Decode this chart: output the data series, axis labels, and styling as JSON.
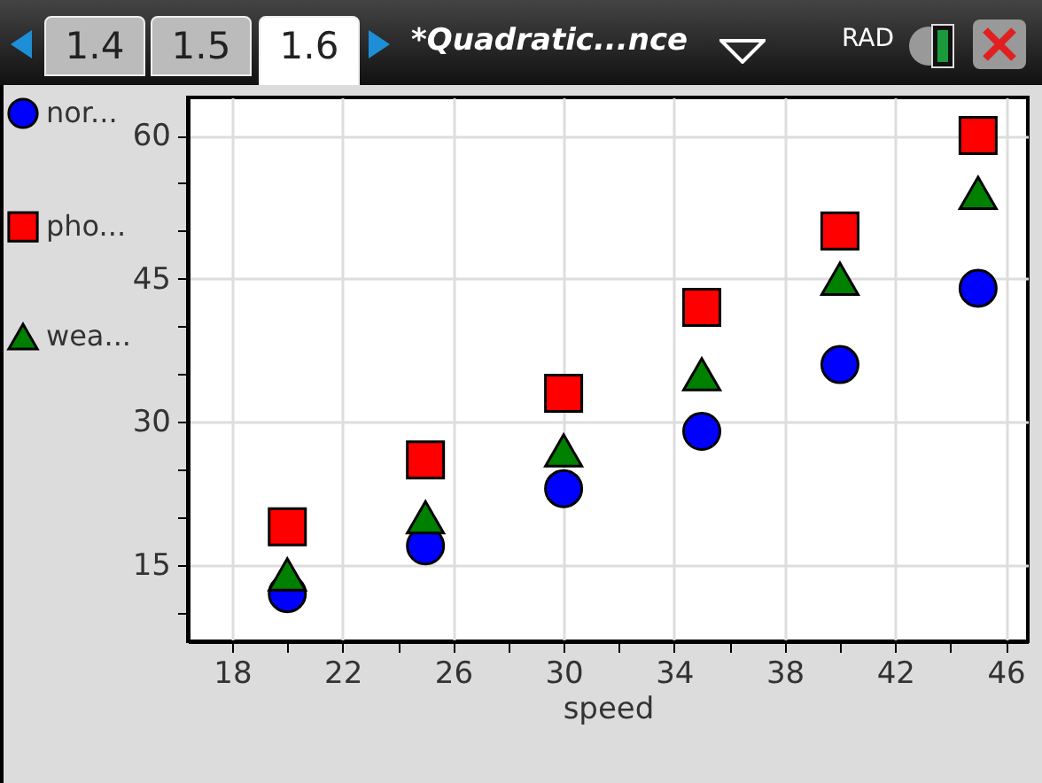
{
  "chart_data": {
    "type": "scatter",
    "xlabel": "speed",
    "annotations": [
      "1.4",
      "1.5",
      "1.6",
      "*Quadratic...nce",
      "RAD"
    ],
    "xlim": [
      16.4,
      46.8
    ],
    "ylim": [
      7,
      64
    ],
    "xticks": [
      18,
      {
        "value": 20,
        "label": null
      },
      22,
      {
        "value": 24,
        "label": null
      },
      26,
      {
        "value": 28,
        "label": null
      },
      30,
      {
        "value": 32,
        "label": null
      },
      34,
      {
        "value": 36,
        "label": null
      },
      38,
      {
        "value": 40,
        "label": null
      },
      42,
      {
        "value": 44,
        "label": null
      },
      46
    ],
    "yticks": [
      {
        "value": 10,
        "label": null
      },
      15,
      {
        "value": 20,
        "label": null
      },
      {
        "value": 25,
        "label": null
      },
      30,
      {
        "value": 35,
        "label": null
      },
      {
        "value": 40,
        "label": null
      },
      45,
      {
        "value": 50,
        "label": null
      },
      {
        "value": 55,
        "label": null
      },
      60
    ],
    "grid": true,
    "legend": "left",
    "x": [
      20,
      25,
      30,
      35,
      40,
      45
    ],
    "series": [
      {
        "name": "nor...",
        "color": "#0000ff",
        "marker": "circle",
        "values": [
          12,
          17,
          23,
          29,
          36,
          44
        ]
      },
      {
        "name": "pho...",
        "color": "#ff0000",
        "marker": "square",
        "values": [
          19,
          26,
          33,
          42,
          50,
          60
        ]
      },
      {
        "name": "wea...",
        "color": "#008000",
        "marker": "triangle",
        "values": [
          14,
          20,
          27,
          35,
          45,
          54
        ]
      }
    ]
  }
}
